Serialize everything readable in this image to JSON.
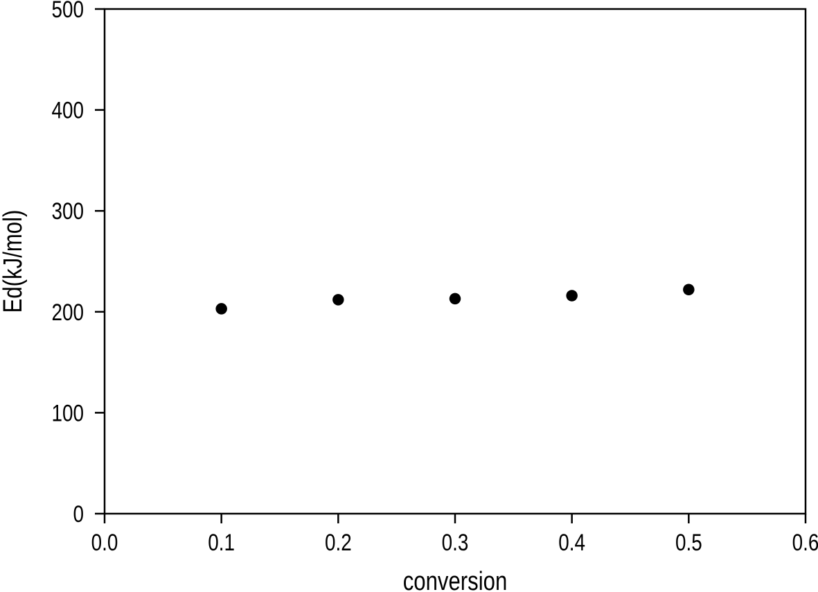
{
  "figure": {
    "background_color": "#ffffff",
    "foreground_color": "#000000"
  },
  "chart_data": {
    "type": "scatter",
    "title": "",
    "xlabel": "conversion",
    "ylabel": "Ed(kJ/mol)",
    "xlim": [
      0.0,
      0.6
    ],
    "ylim": [
      0,
      500
    ],
    "x_ticks": [
      0.0,
      0.1,
      0.2,
      0.3,
      0.4,
      0.5,
      0.6
    ],
    "x_tick_labels": [
      "0.0",
      "0.1",
      "0.2",
      "0.3",
      "0.4",
      "0.5",
      "0.6"
    ],
    "y_ticks": [
      0,
      100,
      200,
      300,
      400,
      500
    ],
    "y_tick_labels": [
      "0",
      "100",
      "200",
      "300",
      "400",
      "500"
    ],
    "grid": false,
    "legend_position": "none",
    "plot_frame": "full-box",
    "series": [
      {
        "name": "Ed",
        "marker": "filled-circle",
        "marker_color": "#000000",
        "marker_diameter_px": 16.5,
        "x": [
          0.1,
          0.2,
          0.3,
          0.4,
          0.5
        ],
        "y": [
          203,
          212,
          213,
          216,
          222
        ]
      }
    ]
  }
}
